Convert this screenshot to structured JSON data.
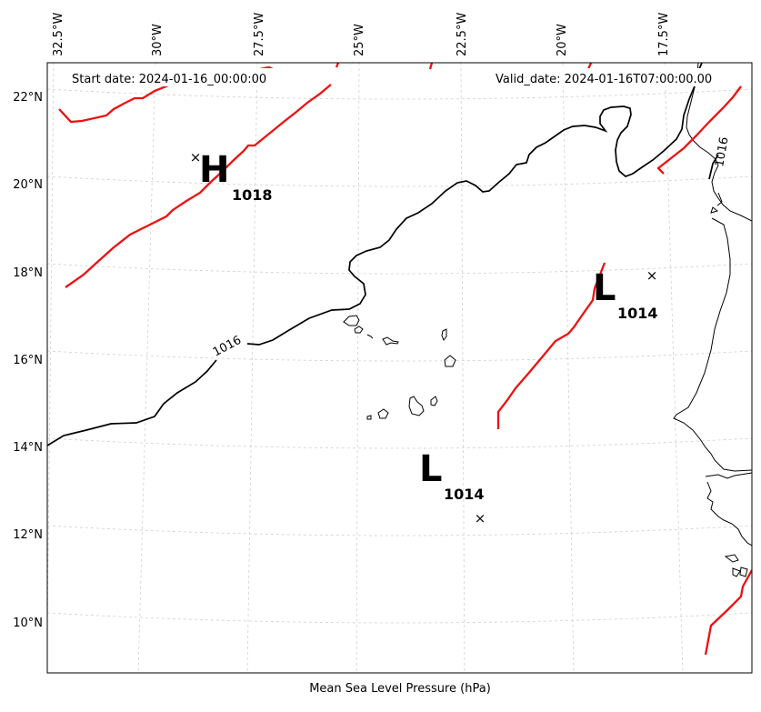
{
  "header": {
    "start_date": "Start date: 2024-01-16_00:00:00",
    "valid_date": "Valid_date: 2024-01-16T07:00:00.00"
  },
  "axes": {
    "lon_ticks": [
      "32.5°W",
      "30°W",
      "27.5°W",
      "25°W",
      "22.5°W",
      "20°W",
      "17.5°W"
    ],
    "lat_ticks": [
      "22°N",
      "20°N",
      "18°N",
      "16°N",
      "14°N",
      "12°N",
      "10°N"
    ],
    "xlabel": "Mean Sea Level Pressure (hPa)"
  },
  "isobars": {
    "black_label": "1016",
    "black_label_east": "1016"
  },
  "pressure_systems": [
    {
      "type": "high",
      "letter": "H",
      "value": "1018"
    },
    {
      "type": "low",
      "letter": "L",
      "value": "1014"
    },
    {
      "type": "low",
      "letter": "L",
      "value": "1014"
    }
  ],
  "colors": {
    "isobar_red": "#ee1111",
    "isobar_black": "#000000",
    "grid": "#d0d0d0"
  },
  "chart_data": {
    "type": "map",
    "title": "Mean Sea Level Pressure (hPa)",
    "projection": "Lambert conformal",
    "lon_range_deg": [
      -33,
      -15.8
    ],
    "lat_range_deg": [
      9,
      22.8
    ],
    "contour_levels_hpa": [
      1016
    ],
    "systems": [
      {
        "type": "H",
        "pressure_hpa": 1018,
        "lon": -29.2,
        "lat": 20.6
      },
      {
        "type": "L",
        "pressure_hpa": 1014,
        "lon": -17.6,
        "lat": 17.9
      },
      {
        "type": "L",
        "pressure_hpa": 1014,
        "lon": -22.0,
        "lat": 12.4
      }
    ]
  }
}
